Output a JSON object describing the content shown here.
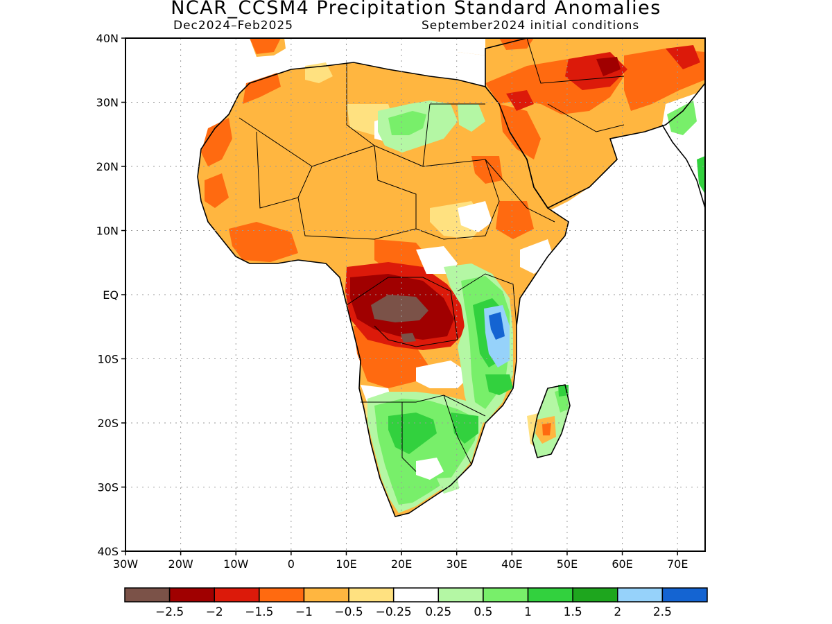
{
  "title": "NCAR_CCSM4 Precipitation Standard Anomalies",
  "subtitle_left": "Dec2024–Feb2025",
  "subtitle_right": "September2024 initial conditions",
  "map": {
    "lat_labels": [
      "40N",
      "30N",
      "20N",
      "10N",
      "EQ",
      "10S",
      "20S",
      "30S",
      "40S"
    ],
    "lon_labels": [
      "30W",
      "20W",
      "10W",
      "0",
      "10E",
      "20E",
      "30E",
      "40E",
      "50E",
      "60E",
      "70E"
    ],
    "lon_range": [
      -30,
      75
    ],
    "lat_range": [
      -40,
      40
    ],
    "grid": "dotted"
  },
  "colorbar": {
    "labels": [
      "−2.5",
      "−2",
      "−1.5",
      "−1",
      "−0.5",
      "−0.25",
      "0.25",
      "0.5",
      "1",
      "1.5",
      "2",
      "2.5"
    ],
    "colors": [
      "#7b5248",
      "#a00000",
      "#dc1a0a",
      "#ff6a10",
      "#ffb640",
      "#ffe180",
      "#ffffff",
      "#b4f7a4",
      "#78ef6a",
      "#32d13e",
      "#1ea61e",
      "#96d2fa",
      "#1464d2"
    ]
  },
  "anomaly_colors": {
    "brown": "#7b5248",
    "darkred": "#a00000",
    "red": "#dc1a0a",
    "orange": "#ff6a10",
    "lightorange": "#ffb640",
    "yellow": "#ffe180",
    "lightgreen": "#b4f7a4",
    "green": "#78ef6a",
    "midgreen": "#32d13e",
    "darkgreen": "#1ea61e",
    "lightblue": "#96d2fa",
    "blue": "#1464d2"
  }
}
